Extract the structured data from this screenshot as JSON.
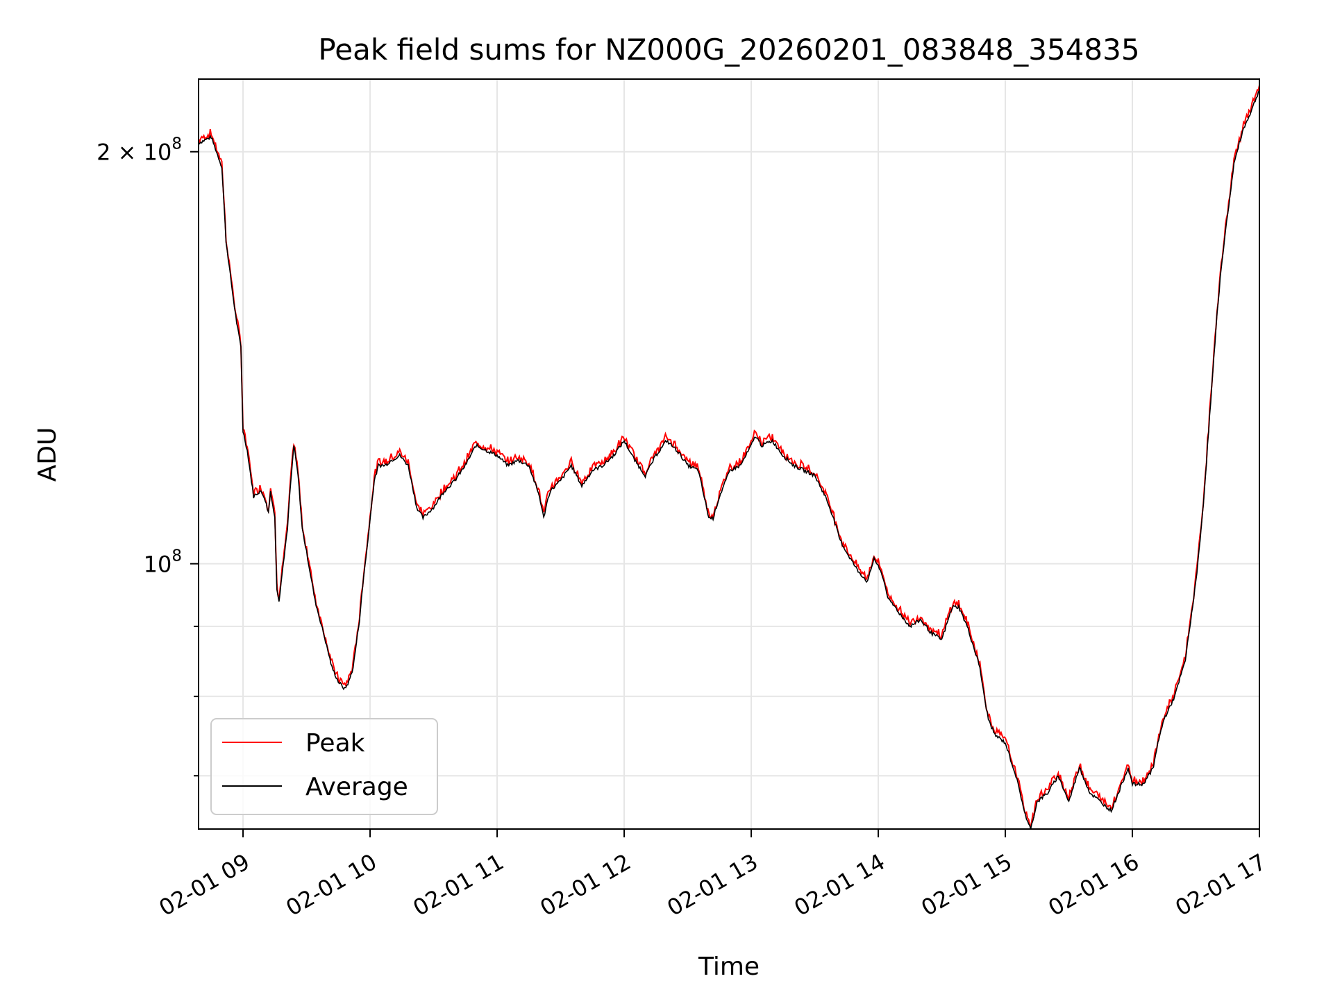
{
  "chart_data": {
    "type": "line",
    "title": "Peak field sums for NZ000G_20260201_083848_354835",
    "xlabel": "Time",
    "ylabel": "ADU",
    "x_scale": "time",
    "y_scale": "log",
    "xlim": [
      "2026-02-01 08:39",
      "2026-02-01 17:00"
    ],
    "ylim": [
      64000000,
      226000000
    ],
    "x_ticks": [
      {
        "value": "2026-02-01 09:00",
        "label": "02-01 09"
      },
      {
        "value": "2026-02-01 10:00",
        "label": "02-01 10"
      },
      {
        "value": "2026-02-01 11:00",
        "label": "02-01 11"
      },
      {
        "value": "2026-02-01 12:00",
        "label": "02-01 12"
      },
      {
        "value": "2026-02-01 13:00",
        "label": "02-01 13"
      },
      {
        "value": "2026-02-01 14:00",
        "label": "02-01 14"
      },
      {
        "value": "2026-02-01 15:00",
        "label": "02-01 15"
      },
      {
        "value": "2026-02-01 16:00",
        "label": "02-01 16"
      },
      {
        "value": "2026-02-01 17:00",
        "label": "02-01 17"
      }
    ],
    "y_major_ticks": [
      {
        "value": 100000000,
        "base": "10",
        "exp": "8",
        "mult": ""
      },
      {
        "value": 200000000,
        "base": "10",
        "exp": "8",
        "mult": "2 × "
      }
    ],
    "y_minor_ticks": [
      70000000,
      80000000,
      90000000
    ],
    "grid": true,
    "legend": {
      "position": "lower-left"
    },
    "series": [
      {
        "name": "Peak",
        "color": "#ff0000"
      },
      {
        "name": "Average",
        "color": "#000000"
      }
    ],
    "x": [
      "08:39",
      "08:45",
      "08:50",
      "08:52",
      "08:55",
      "08:57",
      "08:59",
      "09:00",
      "09:02",
      "09:05",
      "09:08",
      "09:10",
      "09:12",
      "09:13",
      "09:15",
      "09:16",
      "09:17",
      "09:19",
      "09:21",
      "09:22",
      "09:24",
      "09:26",
      "09:28",
      "09:30",
      "09:32",
      "09:34",
      "09:38",
      "09:42",
      "09:45",
      "09:48",
      "09:50",
      "09:52",
      "09:55",
      "09:57",
      "09:59",
      "10:00",
      "10:02",
      "10:04",
      "10:07",
      "10:10",
      "10:14",
      "10:18",
      "10:20",
      "10:22",
      "10:25",
      "10:30",
      "10:35",
      "10:40",
      "10:45",
      "10:50",
      "10:55",
      "11:00",
      "11:05",
      "11:10",
      "11:15",
      "11:20",
      "11:22",
      "11:23",
      "11:25",
      "11:30",
      "11:35",
      "11:40",
      "11:45",
      "11:50",
      "11:55",
      "12:00",
      "12:05",
      "12:10",
      "12:15",
      "12:20",
      "12:25",
      "12:30",
      "12:35",
      "12:40",
      "12:42",
      "12:45",
      "12:50",
      "12:55",
      "13:00",
      "13:02",
      "13:05",
      "13:10",
      "13:15",
      "13:20",
      "13:25",
      "13:30",
      "13:35",
      "13:38",
      "13:42",
      "13:45",
      "13:50",
      "13:55",
      "13:58",
      "14:02",
      "14:05",
      "14:08",
      "14:10",
      "14:15",
      "14:20",
      "14:25",
      "14:30",
      "14:32",
      "14:35",
      "14:38",
      "14:42",
      "14:45",
      "14:48",
      "14:50",
      "14:52",
      "14:55",
      "15:00",
      "15:05",
      "15:08",
      "15:10",
      "15:12",
      "15:15",
      "15:20",
      "15:25",
      "15:30",
      "15:35",
      "15:40",
      "15:45",
      "15:50",
      "15:55",
      "15:58",
      "16:00",
      "16:05",
      "16:10",
      "16:12",
      "16:15",
      "16:20",
      "16:25",
      "16:28",
      "16:30",
      "16:32",
      "16:34",
      "16:36",
      "16:38",
      "16:40",
      "16:42",
      "16:45",
      "16:48",
      "16:52",
      "16:56",
      "17:00"
    ],
    "values": [
      203000000,
      205000000,
      195000000,
      172000000,
      158000000,
      150000000,
      144000000,
      125000000,
      121000000,
      112000000,
      113000000,
      112000000,
      109000000,
      113000000,
      108000000,
      96000000,
      94000000,
      100000000,
      106000000,
      112000000,
      122000000,
      116000000,
      106000000,
      102000000,
      98000000,
      94000000,
      89000000,
      84000000,
      82000000,
      81000000,
      82000000,
      84000000,
      91000000,
      98000000,
      104000000,
      108000000,
      115000000,
      118000000,
      118000000,
      119000000,
      120000000,
      118000000,
      114000000,
      110000000,
      108000000,
      110000000,
      113000000,
      115000000,
      118000000,
      122000000,
      121000000,
      120000000,
      118000000,
      119000000,
      118000000,
      112000000,
      108000000,
      110000000,
      113000000,
      115000000,
      118000000,
      114000000,
      117000000,
      118000000,
      120000000,
      123000000,
      119000000,
      116000000,
      120000000,
      123000000,
      121000000,
      118000000,
      117000000,
      108000000,
      108000000,
      112000000,
      117000000,
      118000000,
      122000000,
      124000000,
      122000000,
      123000000,
      120000000,
      118000000,
      117000000,
      116000000,
      112000000,
      109000000,
      104000000,
      102000000,
      99000000,
      97000000,
      101000000,
      98000000,
      94000000,
      93000000,
      92000000,
      90000000,
      91000000,
      89000000,
      88000000,
      90000000,
      93000000,
      93000000,
      90000000,
      87000000,
      84000000,
      80000000,
      77000000,
      75000000,
      74000000,
      70000000,
      67000000,
      65000000,
      64000000,
      67000000,
      68000000,
      70000000,
      67000000,
      71000000,
      68000000,
      67000000,
      66000000,
      69000000,
      71000000,
      69000000,
      69000000,
      71000000,
      74000000,
      77000000,
      80000000,
      85000000,
      92000000,
      97000000,
      104000000,
      113000000,
      125000000,
      138000000,
      152000000,
      165000000,
      180000000,
      196000000,
      207000000,
      214000000,
      222000000
    ]
  }
}
